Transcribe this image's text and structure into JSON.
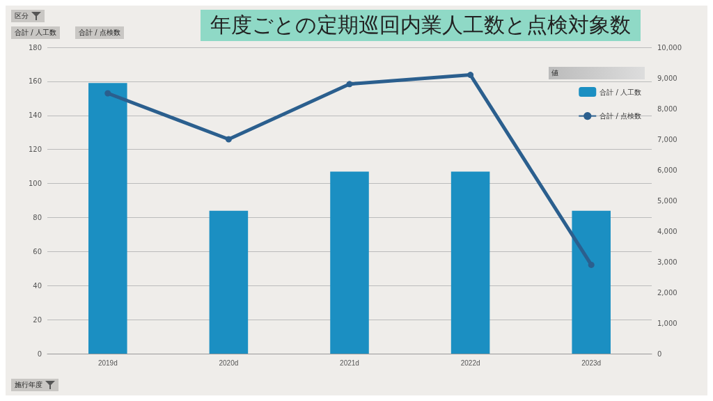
{
  "chart_data": {
    "type": "bar",
    "title": "年度ごとの定期巡回内業人工数と点検対象数",
    "categories": [
      "2019d",
      "2020d",
      "2021d",
      "2022d",
      "2023d"
    ],
    "series": [
      {
        "name": "合計 / 人工数",
        "color": "#1b8fc2",
        "values": [
          159,
          84,
          107,
          107,
          84
        ]
      },
      {
        "name": "合計 / 点検数",
        "type": "line",
        "axis": "y2",
        "color": "#2b5f8e",
        "values": [
          8500,
          7000,
          8800,
          9100,
          2900
        ]
      }
    ],
    "ylim": [
      0,
      180
    ],
    "yticks": [
      0,
      20,
      40,
      60,
      80,
      100,
      120,
      140,
      160,
      180
    ],
    "y2lim": [
      0,
      10000
    ],
    "y2ticks": [
      {
        "value": 0,
        "label": "0"
      },
      {
        "value": 1000,
        "label": "1,000"
      },
      {
        "value": 2000,
        "label": "2,000"
      },
      {
        "value": 3000,
        "label": "3,000"
      },
      {
        "value": 4000,
        "label": "4,000"
      },
      {
        "value": 5000,
        "label": "5,000"
      },
      {
        "value": 6000,
        "label": "6,000"
      },
      {
        "value": 7000,
        "label": "7,000"
      },
      {
        "value": 8000,
        "label": "8,000"
      },
      {
        "value": 9000,
        "label": "9,000"
      },
      {
        "value": 10000,
        "label": "10,000"
      }
    ],
    "grid": "y",
    "legend": "top right",
    "legend_title": "値",
    "marker": "circle",
    "annotations": [
      "区分",
      "合計 / 人工数",
      "合計 / 点検数",
      "施行年度"
    ]
  }
}
